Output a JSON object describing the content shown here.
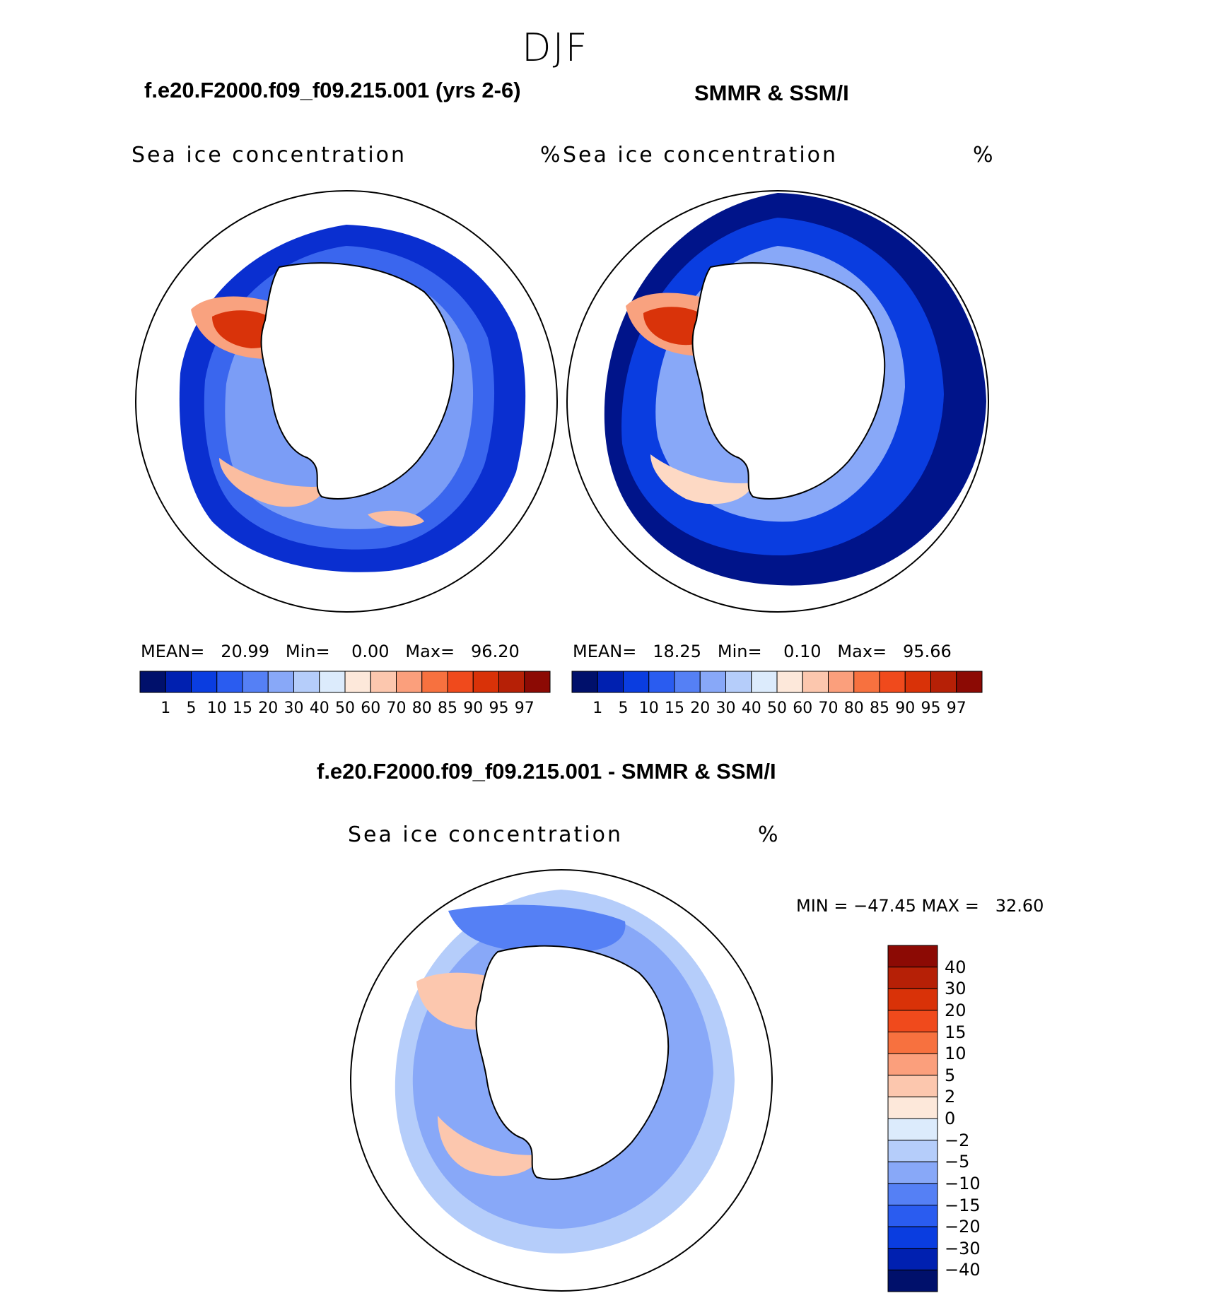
{
  "title": "DJF",
  "panels": [
    {
      "heading": "f.e20.F2000.f09_f09.215.001 (yrs 2-6)",
      "subtitle": "Sea ice concentration",
      "units": "%",
      "mean_label": "MEAN=",
      "mean": "20.99",
      "min_label": "Min=",
      "min": "0.00",
      "max_label": "Max=",
      "max": "96.20"
    },
    {
      "heading": "SMMR & SSM/I",
      "subtitle": "Sea ice concentration",
      "units": "%",
      "mean_label": "MEAN=",
      "mean": "18.25",
      "min_label": "Min=",
      "min": "0.10",
      "max_label": "Max=",
      "max": "95.66"
    }
  ],
  "colorbar": {
    "labels": [
      "1",
      "5",
      "10",
      "15",
      "20",
      "30",
      "40",
      "50",
      "60",
      "70",
      "80",
      "85",
      "90",
      "95",
      "97"
    ],
    "colors": [
      "#00106b",
      "#0020b0",
      "#0a3de0",
      "#2a5cf0",
      "#5580f5",
      "#88a8f8",
      "#b5cdfa",
      "#dcebfc",
      "#fde8da",
      "#fcc7ae",
      "#fb9f7c",
      "#f7713f",
      "#f04a1c",
      "#d93208",
      "#b62006",
      "#8c0a04"
    ]
  },
  "difference": {
    "heading": "f.e20.F2000.f09_f09.215.001 - SMMR & SSM/I",
    "subtitle": "Sea ice concentration",
    "units": "%",
    "minmax_text": "MIN = −47.45 MAX =   32.60",
    "colorbar_labels": [
      "40",
      "30",
      "20",
      "15",
      "10",
      "5",
      "2",
      "0",
      "−2",
      "−5",
      "−10",
      "−15",
      "−20",
      "−30",
      "−40"
    ],
    "colorbar_colors": [
      "#8c0a04",
      "#b62006",
      "#d93208",
      "#f04a1c",
      "#f7713f",
      "#fb9f7c",
      "#fcc7ae",
      "#fde8da",
      "#dcebfc",
      "#b5cdfa",
      "#88a8f8",
      "#5580f5",
      "#2a5cf0",
      "#0a3de0",
      "#0020b0",
      "#00106b"
    ]
  }
}
